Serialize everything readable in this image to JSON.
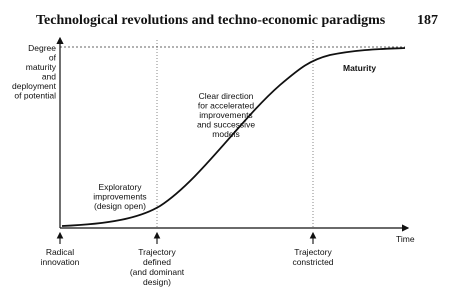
{
  "header": {
    "title": "Technological revolutions and techno-economic paradigms",
    "page": "187"
  },
  "diagram": {
    "y_axis_label": [
      "Degree",
      "of",
      "maturity",
      "and",
      "deployment",
      "of potential"
    ],
    "x_axis_label": "Time",
    "phases": [
      {
        "lines": [
          "Exploratory",
          "improvements",
          "(design open)"
        ]
      },
      {
        "lines": [
          "Clear direction",
          "for accelerated",
          "improvements",
          "and successive",
          "models"
        ]
      },
      {
        "lines": [
          "Maturity"
        ]
      }
    ],
    "milestones": [
      {
        "lines": [
          "Radical",
          "innovation"
        ]
      },
      {
        "lines": [
          "Trajectory",
          "defined",
          "(and dominant",
          "design)"
        ]
      },
      {
        "lines": [
          "Trajectory",
          "constricted"
        ]
      }
    ]
  }
}
